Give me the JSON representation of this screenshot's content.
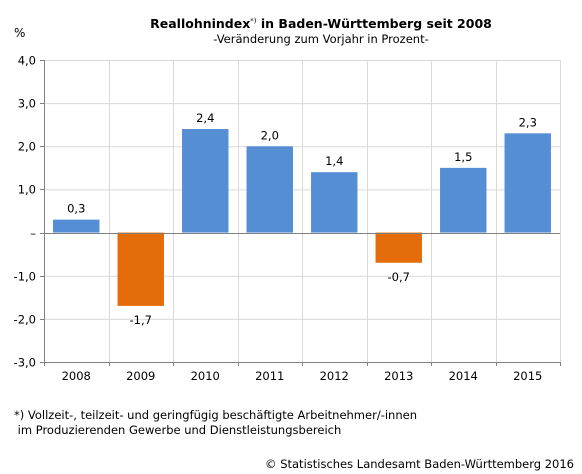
{
  "title": {
    "main": "Reallohnindex",
    "marker": "*)",
    "rest": " in Baden-Württemberg seit 2008",
    "subtitle": "-Veränderung zum Vorjahr in Prozent-"
  },
  "unit_label": "%",
  "footnote": {
    "line1": "*) Vollzeit-, teilzeit- und geringfügig beschäftigte Arbeitnehmer/-innen",
    "line2": " im Produzierenden Gewerbe und Dienstleistungsbereich"
  },
  "source": "© Statistisches Landesamt Baden-Württemberg 2016",
  "chart_data": {
    "type": "bar",
    "title": "Reallohnindex*) in Baden-Württemberg seit 2008",
    "subtitle": "-Veränderung zum Vorjahr in Prozent-",
    "ylabel": "%",
    "categories": [
      "2008",
      "2009",
      "2010",
      "2011",
      "2012",
      "2013",
      "2014",
      "2015"
    ],
    "values": [
      0.3,
      -1.7,
      2.4,
      2.0,
      1.4,
      -0.7,
      1.5,
      2.3
    ],
    "value_labels": [
      "0,3",
      "-1,7",
      "2,4",
      "2,0",
      "1,4",
      "-0,7",
      "1,5",
      "2,3"
    ],
    "ylim": [
      -3.0,
      4.0
    ],
    "yticks": [
      4.0,
      3.0,
      2.0,
      1.0,
      0.0,
      -1.0,
      -2.0,
      -3.0
    ],
    "ytick_labels": [
      "4,0",
      "3,0",
      "2,0",
      "1,0",
      "–",
      "-1,0",
      "-2,0",
      "-3,0"
    ],
    "grid": true,
    "colors": {
      "positive": "#558ed5",
      "negative": "#e46c0a",
      "grid": "#d9d9d9",
      "axis": "#808080"
    }
  }
}
